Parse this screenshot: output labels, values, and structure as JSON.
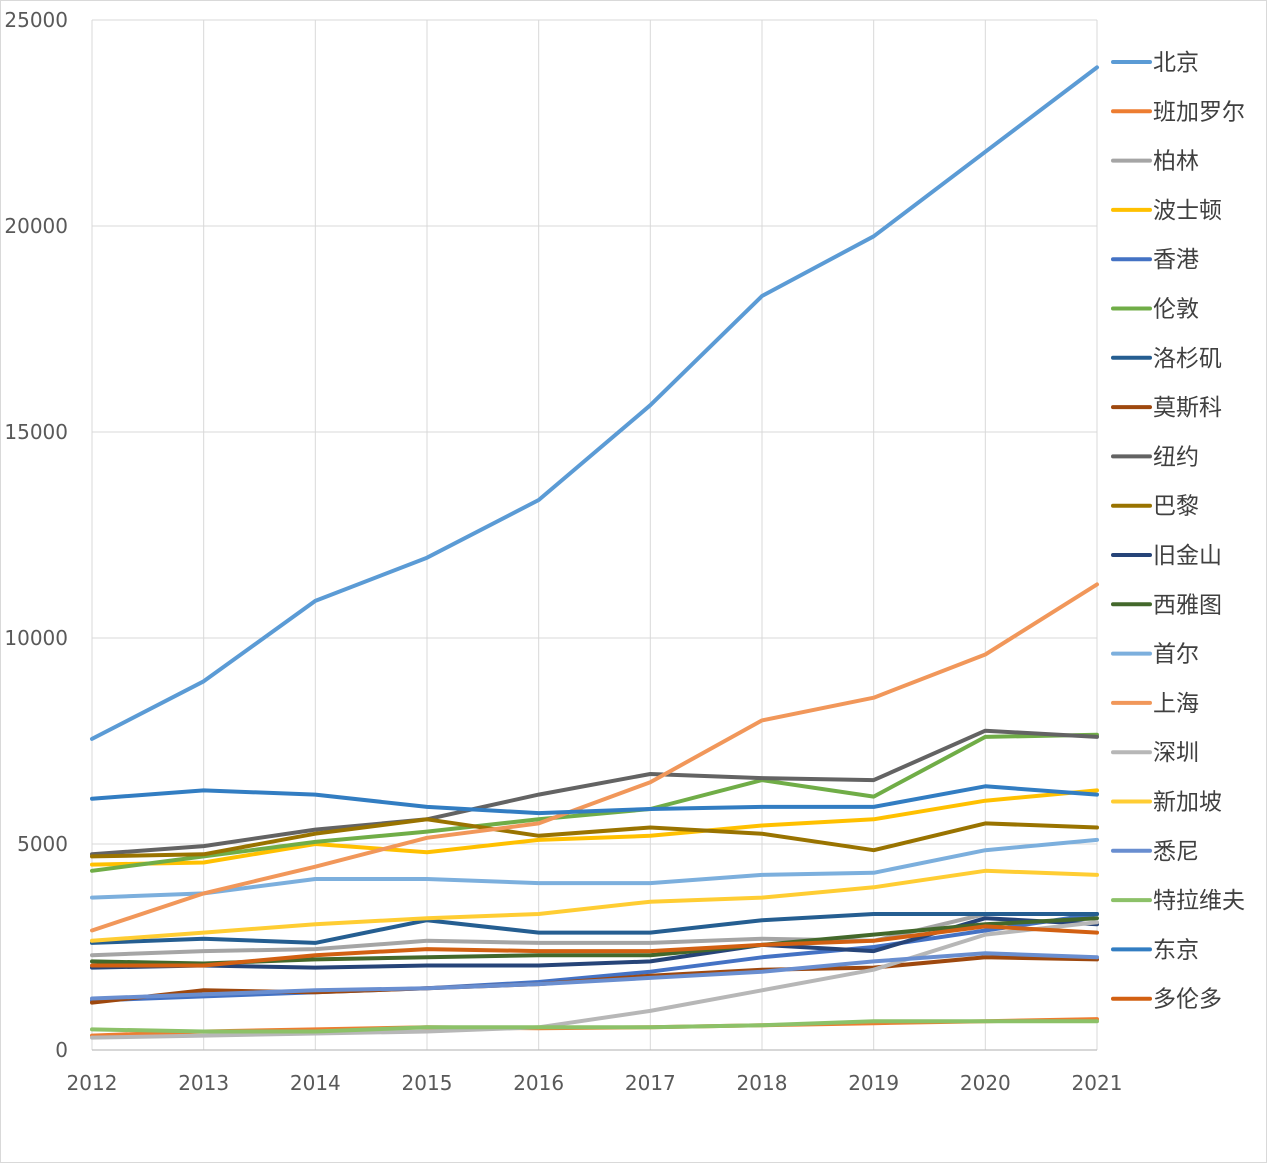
{
  "chart_data": {
    "type": "line",
    "title": "",
    "xlabel": "",
    "ylabel": "",
    "x": [
      2012,
      2013,
      2014,
      2015,
      2016,
      2017,
      2018,
      2019,
      2020,
      2021
    ],
    "ylim": [
      0,
      25000
    ],
    "yticks": [
      0,
      5000,
      10000,
      15000,
      20000,
      25000
    ],
    "grid": true,
    "legend_position": "right",
    "series": [
      {
        "name": "北京",
        "color": "#5B9BD5",
        "values": [
          7550,
          8950,
          10900,
          11950,
          13350,
          15650,
          18300,
          19750,
          21800,
          23850
        ]
      },
      {
        "name": "班加罗尔",
        "color": "#ED7D31",
        "values": [
          350,
          450,
          500,
          550,
          530,
          550,
          600,
          650,
          700,
          750
        ]
      },
      {
        "name": "柏林",
        "color": "#A5A5A5",
        "values": [
          2300,
          2400,
          2450,
          2650,
          2600,
          2600,
          2700,
          2650,
          3300,
          3300
        ]
      },
      {
        "name": "波士顿",
        "color": "#FFC000",
        "values": [
          4500,
          4550,
          5000,
          4800,
          5100,
          5200,
          5450,
          5600,
          6050,
          6300
        ]
      },
      {
        "name": "香港",
        "color": "#4472C4",
        "values": [
          1200,
          1300,
          1400,
          1500,
          1650,
          1900,
          2250,
          2500,
          2900,
          3300
        ]
      },
      {
        "name": "伦敦",
        "color": "#70AD47",
        "values": [
          4350,
          4700,
          5050,
          5300,
          5600,
          5850,
          6550,
          6150,
          7600,
          7650
        ]
      },
      {
        "name": "洛杉矶",
        "color": "#255E91",
        "values": [
          2600,
          2700,
          2600,
          3150,
          2850,
          2850,
          3150,
          3300,
          3300,
          3300
        ]
      },
      {
        "name": "莫斯科",
        "color": "#9E480E",
        "values": [
          1150,
          1450,
          1400,
          1500,
          1600,
          1800,
          1950,
          2000,
          2250,
          2200
        ]
      },
      {
        "name": "纽约",
        "color": "#636363",
        "values": [
          4750,
          4950,
          5350,
          5600,
          6200,
          6700,
          6600,
          6550,
          7750,
          7600
        ]
      },
      {
        "name": "巴黎",
        "color": "#997300",
        "values": [
          4700,
          4750,
          5250,
          5600,
          5200,
          5400,
          5250,
          4850,
          5500,
          5400
        ]
      },
      {
        "name": "旧金山",
        "color": "#264478",
        "values": [
          2000,
          2050,
          2000,
          2050,
          2050,
          2150,
          2550,
          2400,
          3200,
          3050
        ]
      },
      {
        "name": "西雅图",
        "color": "#43682B",
        "values": [
          2150,
          2100,
          2200,
          2250,
          2300,
          2300,
          2550,
          2800,
          3050,
          3200
        ]
      },
      {
        "name": "首尔",
        "color": "#7CAFDD",
        "values": [
          3700,
          3800,
          4150,
          4150,
          4050,
          4050,
          4250,
          4300,
          4850,
          5100
        ]
      },
      {
        "name": "上海",
        "color": "#F1975A",
        "values": [
          2900,
          3800,
          4450,
          5150,
          5500,
          6500,
          8000,
          8550,
          9600,
          11300
        ]
      },
      {
        "name": "深圳",
        "color": "#B7B7B7",
        "values": [
          300,
          350,
          400,
          450,
          550,
          950,
          1450,
          1950,
          2800,
          3100
        ]
      },
      {
        "name": "新加坡",
        "color": "#FFCD33",
        "values": [
          2650,
          2850,
          3050,
          3200,
          3300,
          3600,
          3700,
          3950,
          4350,
          4250
        ]
      },
      {
        "name": "悉尼",
        "color": "#698ED0",
        "values": [
          1250,
          1350,
          1450,
          1500,
          1600,
          1750,
          1900,
          2150,
          2350,
          2250
        ]
      },
      {
        "name": "特拉维夫",
        "color": "#8CC168",
        "values": [
          500,
          450,
          450,
          550,
          550,
          550,
          600,
          700,
          700,
          700
        ]
      },
      {
        "name": "东京",
        "color": "#327DC2",
        "values": [
          6100,
          6300,
          6200,
          5900,
          5750,
          5850,
          5900,
          5900,
          6400,
          6200
        ]
      },
      {
        "name": "多伦多",
        "color": "#D26012",
        "values": [
          2050,
          2050,
          2300,
          2450,
          2400,
          2400,
          2550,
          2650,
          3000,
          2850
        ]
      }
    ]
  }
}
